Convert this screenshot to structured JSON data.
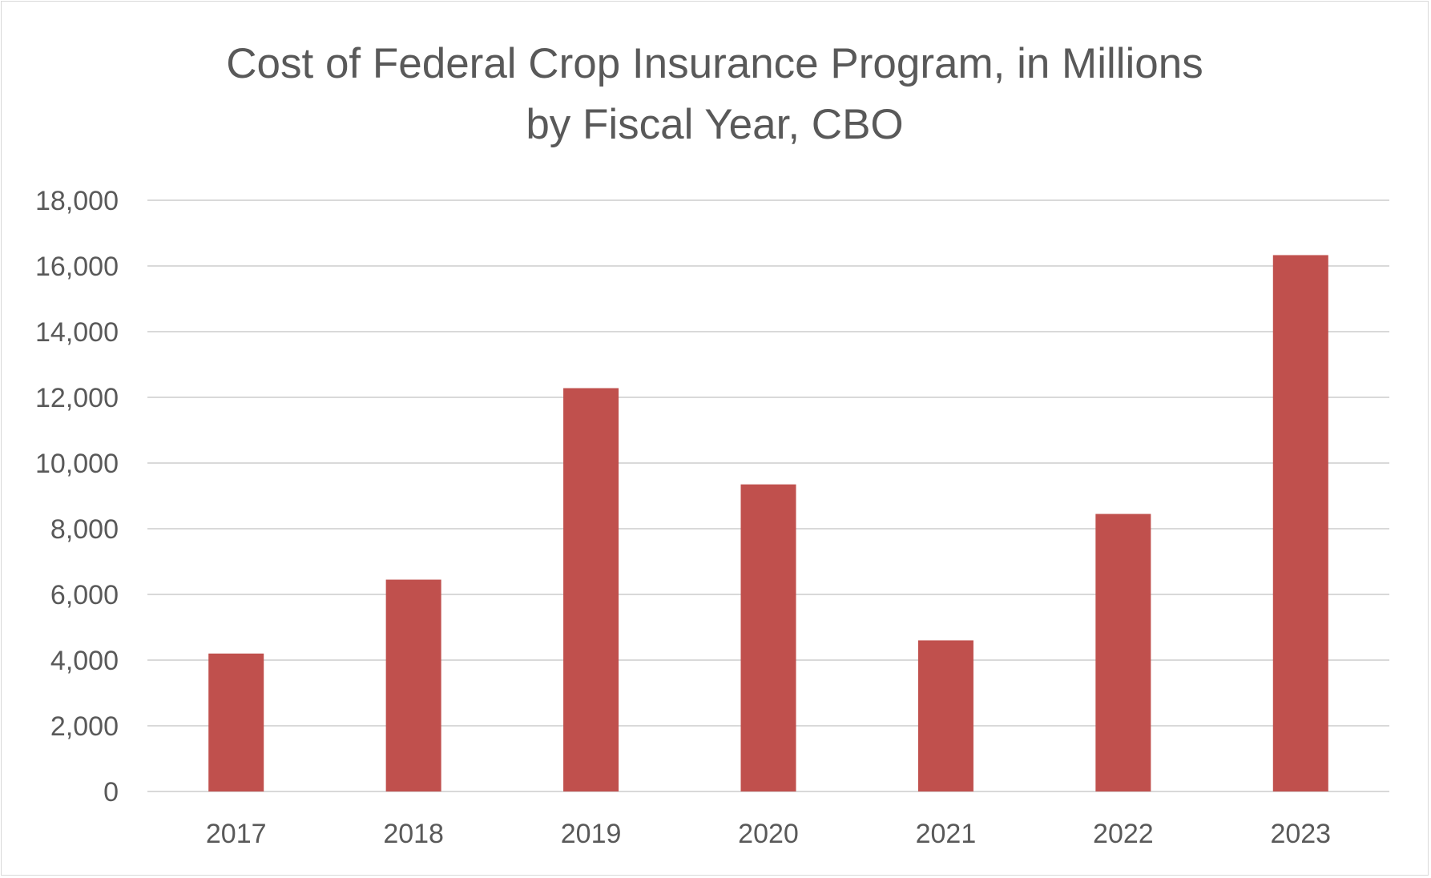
{
  "chart_data": {
    "type": "bar",
    "title_lines": [
      "Cost of Federal Crop Insurance Program, in Millions",
      "by Fiscal Year, CBO"
    ],
    "categories": [
      "2017",
      "2018",
      "2019",
      "2020",
      "2021",
      "2022",
      "2023"
    ],
    "series": [
      {
        "values": [
          4200,
          6450,
          12280,
          9350,
          4600,
          8450,
          16330
        ]
      }
    ],
    "ylim": [
      0,
      18000
    ],
    "yticks": [
      0,
      2000,
      4000,
      6000,
      8000,
      10000,
      12000,
      14000,
      16000,
      18000
    ],
    "ytick_labels": [
      "0",
      "2,000",
      "4,000",
      "6,000",
      "8,000",
      "10,000",
      "12,000",
      "14,000",
      "16,000",
      "18,000"
    ],
    "grid": true,
    "legend": "none",
    "colors": {
      "bar": "#c0504d",
      "grid": "#d9d9d9",
      "text": "#595959"
    }
  }
}
